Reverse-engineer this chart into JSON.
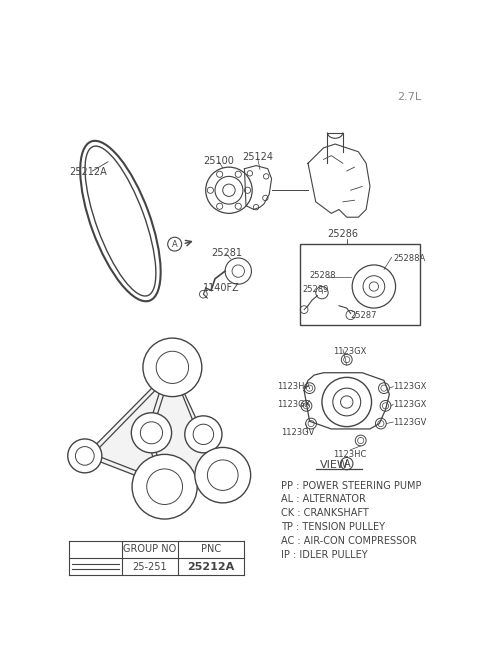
{
  "engine_size": "2.7L",
  "bg_color": "#ffffff",
  "line_color": "#444444",
  "legend_items": [
    "PP : POWER STEERING PUMP",
    "AL : ALTERNATOR",
    "CK : CRANKSHAFT",
    "TP : TENSION PULLEY",
    "AC : AIR-CON COMPRESSOR",
    "IP : IDLER PULLEY"
  ],
  "table": {
    "col1_header": "GROUP NO",
    "col2_header": "PNC",
    "row1_col1": "25-251",
    "row1_col2": "25212A"
  }
}
